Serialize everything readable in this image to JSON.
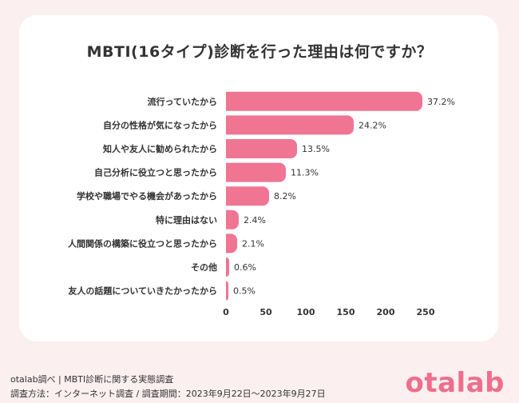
{
  "chart_data": {
    "type": "bar",
    "orientation": "horizontal",
    "title": "MBTI(16タイプ)診断を行った理由は何ですか？",
    "categories": [
      "流行っていたから",
      "自分の性格が気になったから",
      "知人や友人に勧められたから",
      "自己分析に役立つと思ったから",
      "学校や職場でやる機会があったから",
      "特に理由はない",
      "人間関係の構築に役立つと思ったから",
      "その他",
      "友人の話題についていきたかったから"
    ],
    "values": [
      246,
      160,
      89,
      75,
      54,
      16,
      14,
      4,
      3
    ],
    "value_labels": [
      "37.2%",
      "24.2%",
      "13.5%",
      "11.3%",
      "8.2%",
      "2.4%",
      "2.1%",
      "0.6%",
      "0.5%"
    ],
    "xlim": [
      0,
      250
    ],
    "x_ticks": [
      "0",
      "50",
      "100",
      "150",
      "200",
      "250"
    ],
    "grid": false,
    "bar_color": "#f07592"
  },
  "footer": {
    "source": "otalab調べ | MBTI診断に関する実態調査",
    "method": "調査方法：インターネット調査 / 調査期間：2023年9月22日〜2023年9月27日"
  },
  "brand": {
    "logo_text": "otalab",
    "accent_color": "#ee6e8c"
  }
}
